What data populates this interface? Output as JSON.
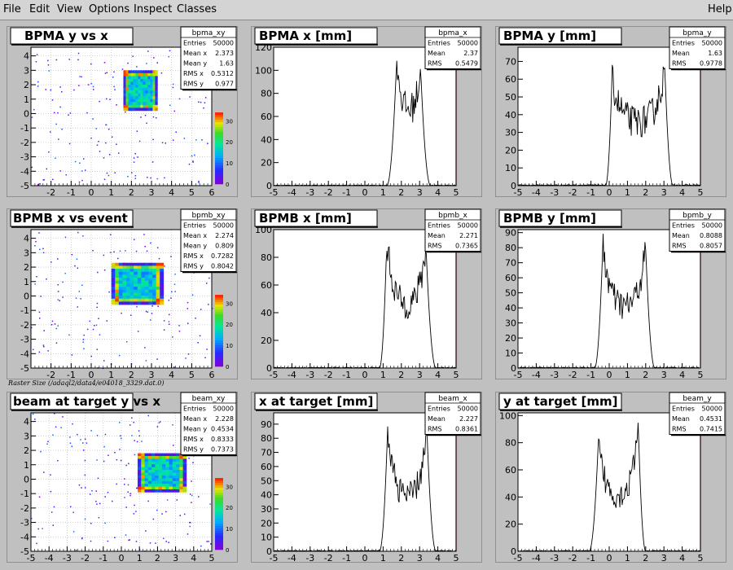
{
  "menu": {
    "items": [
      {
        "label": "File"
      },
      {
        "label": "Edit"
      },
      {
        "label": "View"
      },
      {
        "label": "Options"
      },
      {
        "label": "Inspect"
      },
      {
        "label": "Classes"
      }
    ],
    "help": "Help"
  },
  "caption": "Raster Size (/adaql2/data4/e04018_3329.dat.0)",
  "chart_data": [
    {
      "type": "heatmap",
      "title": "BPMA y vs x",
      "stats": {
        "name": "bpma_xy",
        "rows": [
          [
            "Entries",
            "50000"
          ],
          [
            "Mean x",
            "2.373"
          ],
          [
            "Mean y",
            "1.63"
          ],
          [
            "RMS x",
            "0.5312"
          ],
          [
            "RMS y",
            "0.977"
          ]
        ]
      },
      "xlim": [
        -3,
        6
      ],
      "ylim": [
        -5,
        4.6
      ],
      "xticks": [
        -2,
        -1,
        0,
        1,
        2,
        3,
        4,
        5,
        6
      ],
      "yticks": [
        -5,
        -4,
        -3,
        -2,
        -1,
        0,
        1,
        2,
        3,
        4
      ],
      "box": {
        "x": [
          1.6,
          3.3
        ],
        "y": [
          0.2,
          3.0
        ]
      },
      "palette_ticks": [
        0,
        10,
        20,
        30
      ]
    },
    {
      "type": "line",
      "title": "BPMA x [mm]",
      "stats": {
        "name": "bpma_x",
        "rows": [
          [
            "Entries",
            "50000"
          ],
          [
            "Mean",
            "2.37"
          ],
          [
            "RMS",
            "0.5479"
          ]
        ]
      },
      "xlim": [
        -5,
        5
      ],
      "ylim": [
        0,
        120
      ],
      "xticks": [
        -5,
        -4,
        -3,
        -2,
        -1,
        0,
        1,
        2,
        3,
        4,
        5
      ],
      "yticks": [
        0,
        20,
        40,
        60,
        80,
        100,
        120
      ],
      "profile": {
        "start": 1.2,
        "end": 3.6,
        "peakL": 1.75,
        "peakR": 3.05,
        "peakLH": 112,
        "peakRH": 104,
        "mid": 65,
        "noise": 14
      }
    },
    {
      "type": "line",
      "title": "BPMA y [mm]",
      "stats": {
        "name": "bpma_y",
        "rows": [
          [
            "Entries",
            "50000"
          ],
          [
            "Mean",
            "1.63"
          ],
          [
            "RMS",
            "0.9778"
          ]
        ]
      },
      "xlim": [
        -5,
        5
      ],
      "ylim": [
        0,
        78
      ],
      "xticks": [
        -5,
        -4,
        -3,
        -2,
        -1,
        0,
        1,
        2,
        3,
        4,
        5
      ],
      "yticks": [
        0,
        10,
        20,
        30,
        40,
        50,
        60,
        70
      ],
      "profile": {
        "start": -0.2,
        "end": 3.5,
        "peakL": 0.15,
        "peakR": 3.05,
        "peakLH": 60,
        "peakRH": 66,
        "mid": 35,
        "noise": 9
      }
    },
    {
      "type": "heatmap",
      "title": "BPMB x vs event",
      "stats": {
        "name": "bpmb_xy",
        "rows": [
          [
            "Entries",
            "50000"
          ],
          [
            "Mean x",
            "2.274"
          ],
          [
            "Mean y",
            "0.809"
          ],
          [
            "RMS x",
            "0.7282"
          ],
          [
            "RMS y",
            "0.8042"
          ]
        ]
      },
      "xlim": [
        -3,
        6
      ],
      "ylim": [
        -5,
        4.6
      ],
      "xticks": [
        -2,
        -1,
        0,
        1,
        2,
        3,
        4,
        5,
        6
      ],
      "yticks": [
        -5,
        -4,
        -3,
        -2,
        -1,
        0,
        1,
        2,
        3,
        4
      ],
      "box": {
        "x": [
          1.0,
          3.6
        ],
        "y": [
          -0.6,
          2.3
        ]
      },
      "palette_ticks": [
        0,
        10,
        20,
        30
      ]
    },
    {
      "type": "line",
      "title": "BPMB x [mm]",
      "stats": {
        "name": "bpmb_x",
        "rows": [
          [
            "Entries",
            "50000"
          ],
          [
            "Mean",
            "2.271"
          ],
          [
            "RMS",
            "0.7365"
          ]
        ]
      },
      "xlim": [
        -5,
        5
      ],
      "ylim": [
        0,
        100
      ],
      "xticks": [
        -5,
        -4,
        -3,
        -2,
        -1,
        0,
        1,
        2,
        3,
        4,
        5
      ],
      "yticks": [
        0,
        20,
        40,
        60,
        80,
        100
      ],
      "profile": {
        "start": 0.8,
        "end": 3.9,
        "peakL": 1.2,
        "peakR": 3.35,
        "peakLH": 92,
        "peakRH": 88,
        "mid": 45,
        "noise": 11
      }
    },
    {
      "type": "line",
      "title": "BPMB y [mm]",
      "stats": {
        "name": "bpmb_y",
        "rows": [
          [
            "Entries",
            "50000"
          ],
          [
            "Mean",
            "0.8088"
          ],
          [
            "RMS",
            "0.8057"
          ]
        ]
      },
      "xlim": [
        -5,
        5
      ],
      "ylim": [
        0,
        92
      ],
      "xticks": [
        -5,
        -4,
        -3,
        -2,
        -1,
        0,
        1,
        2,
        3,
        4,
        5
      ],
      "yticks": [
        0,
        10,
        20,
        30,
        40,
        50,
        60,
        70,
        80,
        90
      ],
      "profile": {
        "start": -0.8,
        "end": 2.5,
        "peakL": -0.35,
        "peakR": 2.0,
        "peakLH": 82,
        "peakRH": 80,
        "mid": 40,
        "noise": 10
      }
    },
    {
      "type": "heatmap",
      "title": "beam at target y vs x",
      "stats": {
        "name": "beam_xy",
        "rows": [
          [
            "Entries",
            "50000"
          ],
          [
            "Mean x",
            "2.228"
          ],
          [
            "Mean y",
            "0.4534"
          ],
          [
            "RMS x",
            "0.8333"
          ],
          [
            "RMS y",
            "0.7373"
          ]
        ]
      },
      "xlim": [
        -5,
        5
      ],
      "ylim": [
        -5,
        4.6
      ],
      "xticks": [
        -5,
        -4,
        -3,
        -2,
        -1,
        0,
        1,
        2,
        3,
        4,
        5
      ],
      "yticks": [
        -5,
        -4,
        -3,
        -2,
        -1,
        0,
        1,
        2,
        3,
        4
      ],
      "box": {
        "x": [
          0.9,
          3.6
        ],
        "y": [
          -0.9,
          1.8
        ]
      },
      "palette_ticks": [
        0,
        10,
        20,
        30
      ]
    },
    {
      "type": "line",
      "title": "x at target [mm]",
      "stats": {
        "name": "beam_x",
        "rows": [
          [
            "Entries",
            "50000"
          ],
          [
            "Mean",
            "2.227"
          ],
          [
            "RMS",
            "0.8361"
          ]
        ]
      },
      "xlim": [
        -5,
        5
      ],
      "ylim": [
        0,
        98
      ],
      "xticks": [
        -5,
        -4,
        -3,
        -2,
        -1,
        0,
        1,
        2,
        3,
        4,
        5
      ],
      "yticks": [
        0,
        10,
        20,
        30,
        40,
        50,
        60,
        70,
        80,
        90
      ],
      "profile": {
        "start": 0.8,
        "end": 3.9,
        "peakL": 1.25,
        "peakR": 3.4,
        "peakLH": 88,
        "peakRH": 86,
        "mid": 38,
        "noise": 10
      }
    },
    {
      "type": "line",
      "title": "y at target [mm]",
      "stats": {
        "name": "beam_y",
        "rows": [
          [
            "Entries",
            "50000"
          ],
          [
            "Mean",
            "0.4531"
          ],
          [
            "RMS",
            "0.7415"
          ]
        ]
      },
      "xlim": [
        -5,
        5
      ],
      "ylim": [
        0,
        102
      ],
      "xticks": [
        -5,
        -4,
        -3,
        -2,
        -1,
        0,
        1,
        2,
        3,
        4,
        5
      ],
      "yticks": [
        0,
        20,
        40,
        60,
        80,
        100
      ],
      "profile": {
        "start": -1.1,
        "end": 2.0,
        "peakL": -0.6,
        "peakR": 1.6,
        "peakLH": 80,
        "peakRH": 90,
        "mid": 40,
        "noise": 10
      }
    }
  ]
}
